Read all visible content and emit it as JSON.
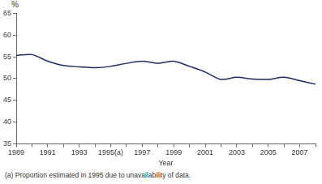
{
  "chart_data": {
    "type": "line",
    "xlabel": "Year",
    "ylabel": "%",
    "annotations": [
      "(a) Proportion estimated in 1995 due to unavailability of data."
    ],
    "categories": [
      "1989",
      null,
      "1991",
      null,
      "1993",
      null,
      "1995(a)",
      null,
      "1997",
      null,
      "1999",
      null,
      "2001",
      null,
      "2003",
      null,
      "2005",
      null,
      "2007",
      null
    ],
    "values": [
      55.3,
      55.5,
      54.0,
      53.0,
      52.7,
      52.5,
      52.8,
      53.5,
      54.0,
      53.5,
      54.0,
      52.8,
      51.5,
      49.8,
      50.3,
      49.9,
      49.8,
      50.3,
      49.5,
      48.7
    ],
    "color": "#1c2a5e",
    "ylim": [
      35,
      65
    ],
    "yticks": [
      35,
      40,
      45,
      50,
      55,
      60,
      65
    ],
    "grid": false
  }
}
